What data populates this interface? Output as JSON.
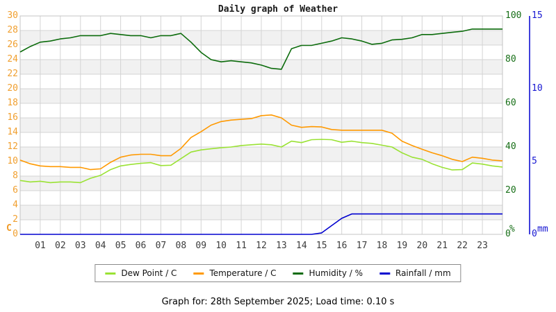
{
  "title": "Daily graph of Weather",
  "caption": "Graph for: 28th September 2025; Load time: 0.10 s",
  "colors": {
    "dew": "#9ae234",
    "temp": "#ff9900",
    "humidity": "#0b6b0b",
    "rain": "#0000cf",
    "temp_axis_label": "#f09f2f",
    "humidity_axis_label": "#166e16",
    "rain_axis_label": "#1717d2",
    "band": "#f1f1f1",
    "grid": "#d4d4d4",
    "border": "#c4c4c4"
  },
  "legend": {
    "items": [
      {
        "label": "Dew Point / C"
      },
      {
        "label": "Temperature / C"
      },
      {
        "label": "Humidity / %"
      },
      {
        "label": "Rainfall / mm"
      }
    ]
  },
  "chart_data": {
    "type": "line",
    "title": "Daily graph of Weather",
    "x_axis": {
      "range_hours": [
        0,
        24
      ],
      "labels": [
        "01",
        "02",
        "03",
        "04",
        "05",
        "06",
        "07",
        "08",
        "09",
        "10",
        "11",
        "12",
        "13",
        "14",
        "15",
        "16",
        "17",
        "18",
        "19",
        "20",
        "21",
        "22",
        "23"
      ]
    },
    "axes": {
      "temperature": {
        "unit": "C",
        "side": "left",
        "range": [
          0,
          30
        ],
        "ticks": [
          30,
          28,
          26,
          24,
          22,
          20,
          18,
          16,
          14,
          12,
          10,
          8,
          6,
          4,
          2,
          0
        ]
      },
      "humidity": {
        "unit": "%",
        "side": "right",
        "range": [
          0,
          100
        ],
        "ticks": [
          100,
          80,
          60,
          40,
          20,
          0
        ]
      },
      "rain": {
        "unit": "mm",
        "side": "far-right",
        "range": [
          0,
          15
        ],
        "ticks": [
          15,
          10,
          5,
          0
        ]
      }
    },
    "x_hours": [
      0,
      0.5,
      1,
      1.5,
      2,
      2.5,
      3,
      3.5,
      4,
      4.5,
      5,
      5.5,
      6,
      6.5,
      7,
      7.5,
      8,
      8.5,
      9,
      9.5,
      10,
      10.5,
      11,
      11.5,
      12,
      12.5,
      13,
      13.5,
      14,
      14.5,
      15,
      15.5,
      16,
      16.5,
      17,
      17.5,
      18,
      18.5,
      19,
      19.5,
      20,
      20.5,
      21,
      21.5,
      22,
      22.5,
      23,
      23.5,
      24
    ],
    "series": [
      {
        "name": "Dew Point / C",
        "axis": "temperature",
        "color_key": "dew",
        "values": [
          7.4,
          7.2,
          7.3,
          7.1,
          7.2,
          7.2,
          7.1,
          7.7,
          8.1,
          8.9,
          9.4,
          9.6,
          9.75,
          9.85,
          9.45,
          9.5,
          10.4,
          11.3,
          11.6,
          11.75,
          11.9,
          12.0,
          12.2,
          12.3,
          12.4,
          12.3,
          12.0,
          12.8,
          12.6,
          13.0,
          13.05,
          13.0,
          12.65,
          12.8,
          12.6,
          12.5,
          12.25,
          12.0,
          11.2,
          10.6,
          10.3,
          9.7,
          9.2,
          8.85,
          8.9,
          9.8,
          9.65,
          9.4,
          9.25
        ]
      },
      {
        "name": "Temperature / C",
        "axis": "temperature",
        "color_key": "temp",
        "values": [
          10.2,
          9.7,
          9.4,
          9.3,
          9.3,
          9.2,
          9.2,
          8.9,
          9.0,
          9.9,
          10.6,
          10.9,
          11.0,
          11.0,
          10.8,
          10.8,
          11.8,
          13.3,
          14.1,
          15.0,
          15.5,
          15.7,
          15.8,
          15.9,
          16.3,
          16.4,
          16.0,
          15.0,
          14.7,
          14.8,
          14.75,
          14.4,
          14.3,
          14.3,
          14.3,
          14.3,
          14.3,
          13.9,
          12.8,
          12.2,
          11.7,
          11.2,
          10.8,
          10.3,
          10.0,
          10.6,
          10.45,
          10.2,
          10.1
        ]
      },
      {
        "name": "Humidity / %",
        "axis": "humidity",
        "color_key": "humidity",
        "values": [
          83.5,
          86,
          88,
          88.5,
          89.5,
          90,
          91,
          91,
          91,
          92,
          91.5,
          91,
          91,
          90,
          91,
          91,
          92,
          88,
          83.3,
          80,
          79,
          79.5,
          79,
          78.5,
          77.5,
          76,
          75.6,
          85,
          86.5,
          86.5,
          87.5,
          88.5,
          90,
          89.5,
          88.5,
          87,
          87.5,
          89,
          89.3,
          90,
          91.5,
          91.5,
          92,
          92.5,
          93,
          94,
          94,
          94,
          94
        ]
      },
      {
        "name": "Rainfall / mm",
        "axis": "rain",
        "color_key": "rain",
        "values": [
          0,
          0,
          0,
          0,
          0,
          0,
          0,
          0,
          0,
          0,
          0,
          0,
          0,
          0,
          0,
          0,
          0,
          0,
          0,
          0,
          0,
          0,
          0,
          0,
          0,
          0,
          0,
          0,
          0,
          0,
          0.1,
          0.6,
          1.1,
          1.4,
          1.4,
          1.4,
          1.4,
          1.4,
          1.4,
          1.4,
          1.4,
          1.4,
          1.4,
          1.4,
          1.4,
          1.4,
          1.4,
          1.4,
          1.4
        ]
      }
    ]
  }
}
